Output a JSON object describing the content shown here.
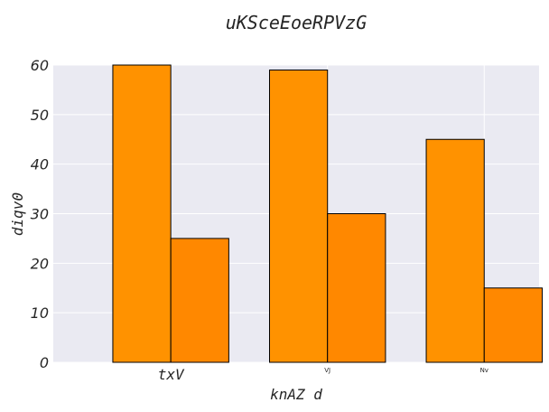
{
  "chart_data": {
    "type": "bar",
    "title": "uKSceEoeRPVzG",
    "xlabel": "knAZ d",
    "ylabel": "diqv0",
    "categories": [
      "txV",
      "VJ",
      "Nv"
    ],
    "series": [
      {
        "values": [
          60,
          59,
          45
        ],
        "color": "#ff9200"
      },
      {
        "values": [
          25,
          30,
          15
        ],
        "color": "#ff8800"
      }
    ],
    "ylim": [
      0,
      60
    ],
    "yticks": [
      0,
      10,
      20,
      30,
      40,
      50,
      60
    ],
    "grid": true,
    "background": "#eaeaf2"
  }
}
